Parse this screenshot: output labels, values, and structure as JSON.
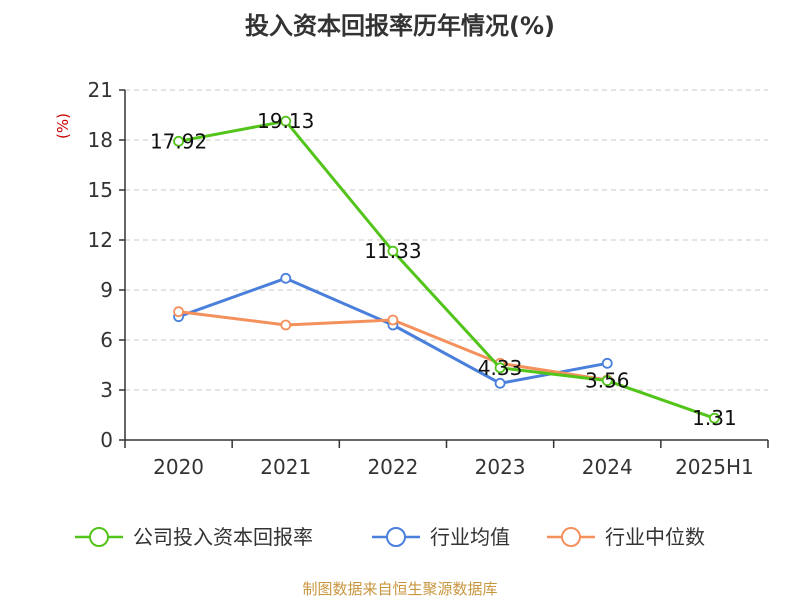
{
  "chart_data": {
    "type": "line",
    "title": "投入资本回报率历年情况(%)",
    "ylabel": "(%)",
    "ylim": [
      0,
      21
    ],
    "yticks": [
      0,
      3,
      6,
      9,
      12,
      15,
      18,
      21
    ],
    "categories": [
      "2020",
      "2021",
      "2022",
      "2023",
      "2024",
      "2025H1"
    ],
    "grid": true,
    "legend_position": "bottom",
    "series": [
      {
        "name": "公司投入资本回报率",
        "color": "#52c41a",
        "values": [
          17.92,
          19.13,
          11.33,
          4.33,
          3.56,
          1.31
        ],
        "labels": [
          "17.92",
          "19.13",
          "11.33",
          "4.33",
          "3.56",
          "1.31"
        ]
      },
      {
        "name": "行业均值",
        "color": "#4a7fdb",
        "values": [
          7.4,
          9.7,
          6.9,
          3.4,
          4.6,
          null
        ]
      },
      {
        "name": "行业中位数",
        "color": "#f4905c",
        "values": [
          7.7,
          6.9,
          7.2,
          4.6,
          3.6,
          null
        ]
      }
    ]
  },
  "source": "制图数据来自恒生聚源数据库"
}
